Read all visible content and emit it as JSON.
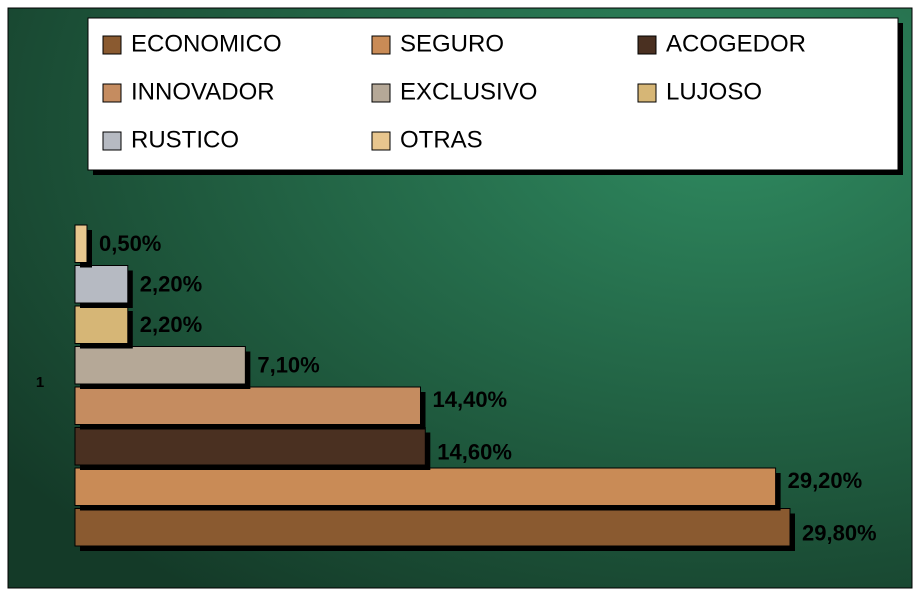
{
  "chart_data": {
    "type": "bar",
    "orientation": "horizontal",
    "categories": [
      "1"
    ],
    "series": [
      {
        "name": "ECONOMICO",
        "color": "#8a5a30",
        "values": [
          29.8
        ],
        "value_labels": [
          "29,80%"
        ]
      },
      {
        "name": "SEGURO",
        "color": "#c98b56",
        "values": [
          29.2
        ],
        "value_labels": [
          "29,20%"
        ]
      },
      {
        "name": "ACOGEDOR",
        "color": "#4a3021",
        "values": [
          14.6
        ],
        "value_labels": [
          "14,60%"
        ]
      },
      {
        "name": "INNOVADOR",
        "color": "#c58c60",
        "values": [
          14.4
        ],
        "value_labels": [
          "14,40%"
        ]
      },
      {
        "name": "EXCLUSIVO",
        "color": "#b5a897",
        "values": [
          7.1
        ],
        "value_labels": [
          "7,10%"
        ]
      },
      {
        "name": "LUJOSO",
        "color": "#d6b676",
        "values": [
          2.2
        ],
        "value_labels": [
          "2,20%"
        ]
      },
      {
        "name": "RUSTICO",
        "color": "#b6bac2",
        "values": [
          2.2
        ],
        "value_labels": [
          "2,20%"
        ]
      },
      {
        "name": "OTRAS",
        "color": "#e8c68e",
        "values": [
          0.5
        ],
        "value_labels": [
          "0,50%"
        ]
      }
    ],
    "legend": "top"
  }
}
